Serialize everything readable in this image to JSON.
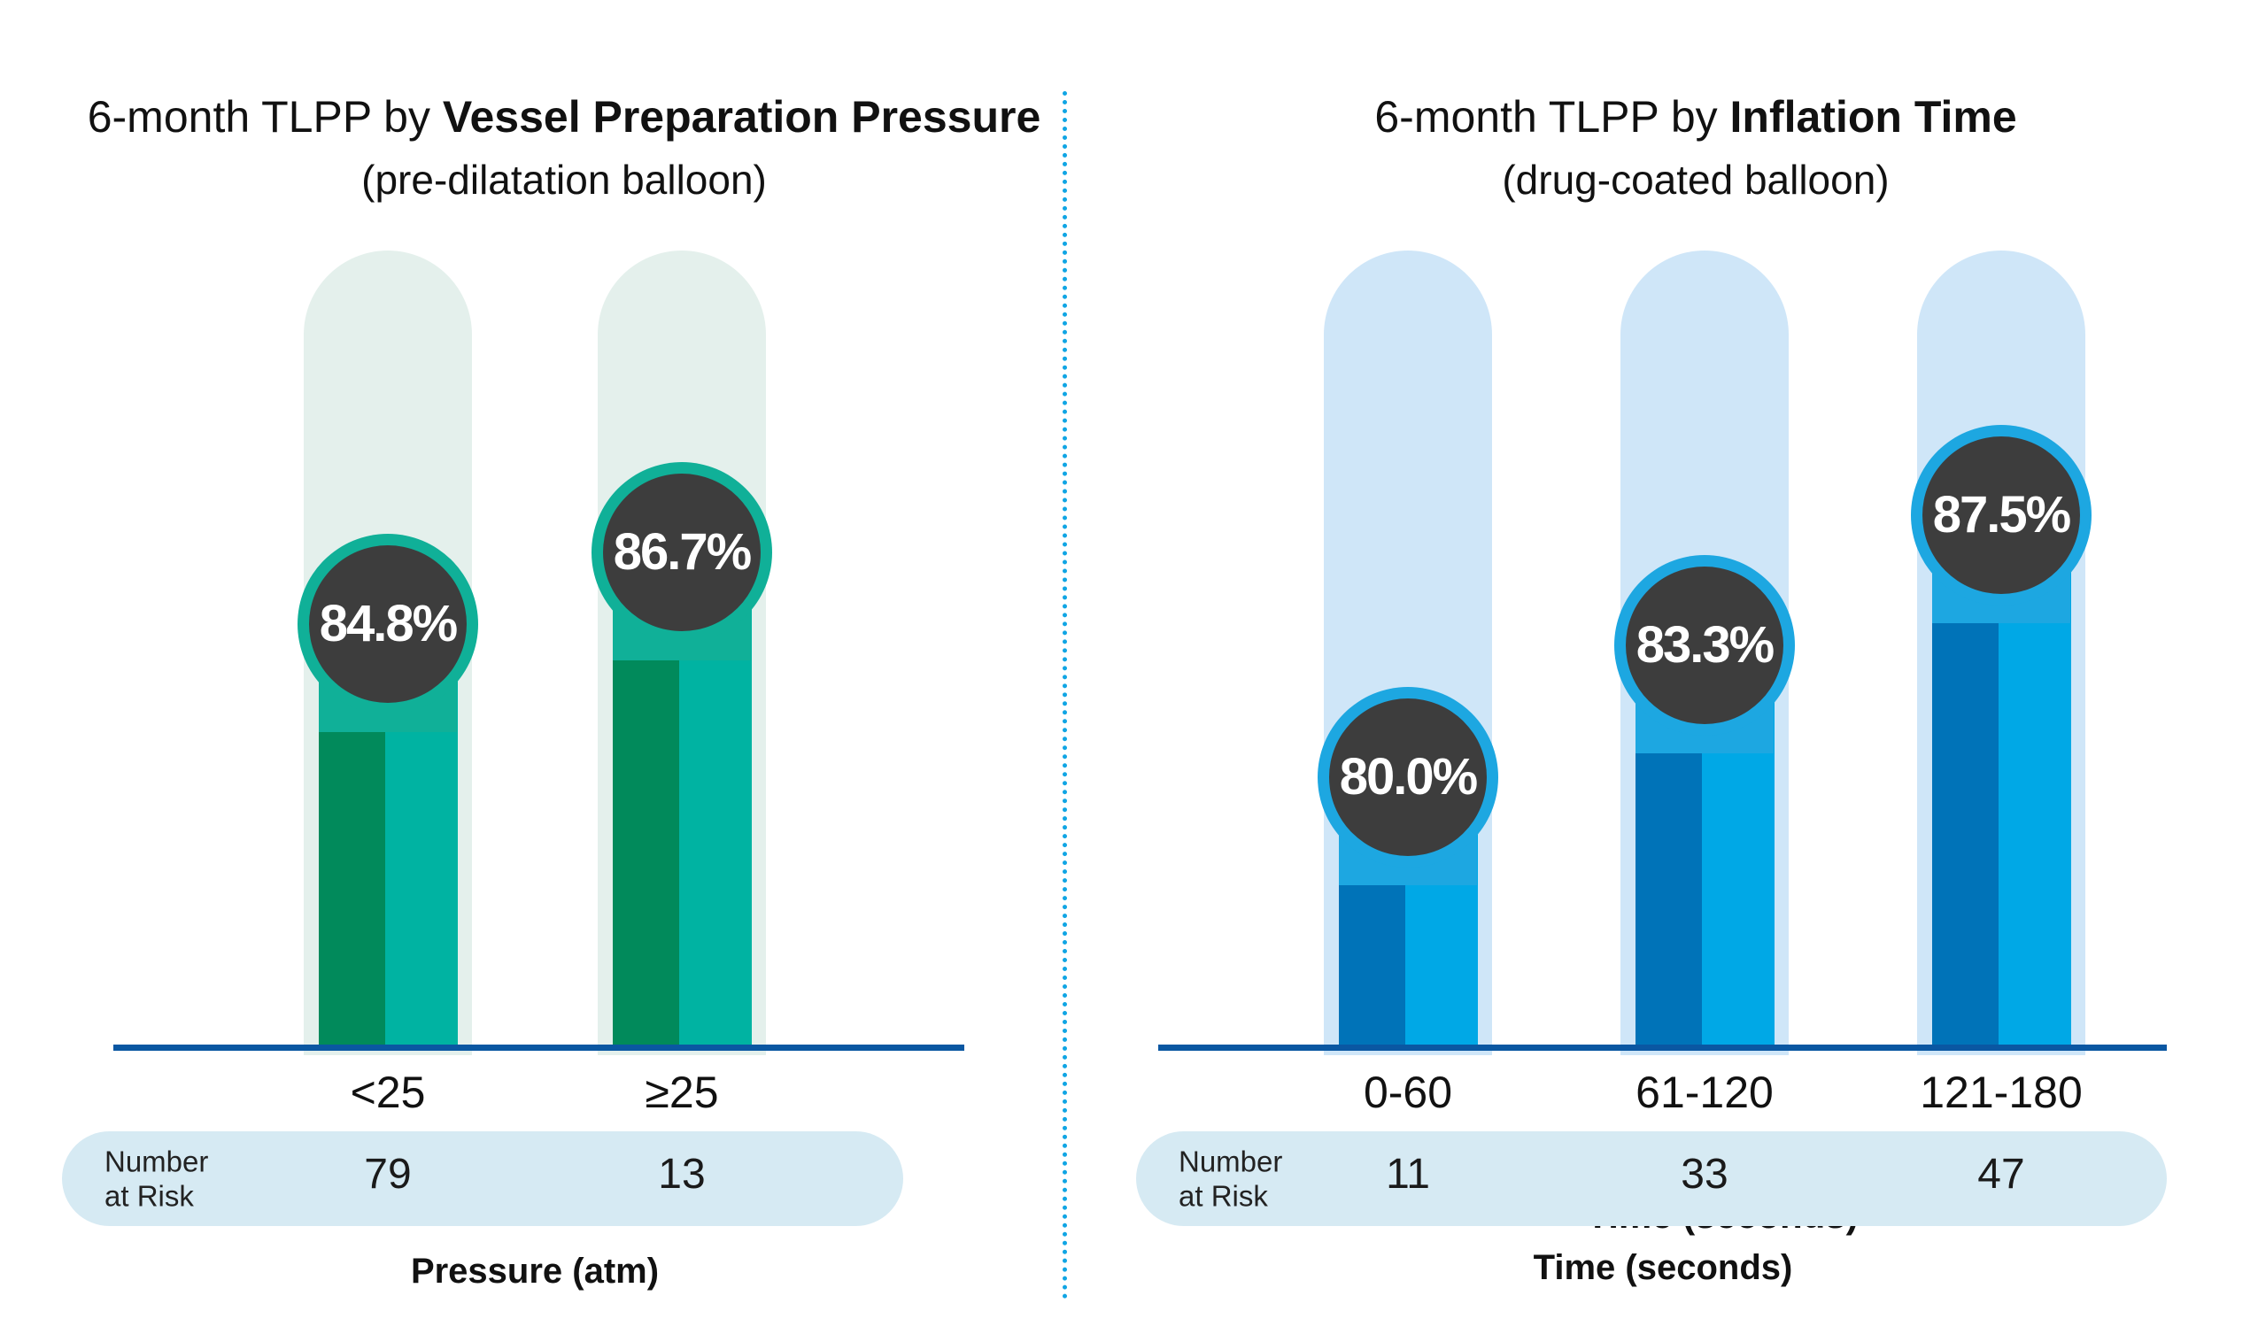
{
  "canvas": {
    "background": "#ffffff"
  },
  "divider": {
    "color": "#10a5e4"
  },
  "shared": {
    "baseline_color": "#0a57a2",
    "badge_bg": "#3d3d3d",
    "badge_text_color": "#ffffff",
    "nar_pill_color": "#d6eaf3",
    "text_color": "#111111"
  },
  "charts": [
    {
      "title_prefix": "6-month TLPP by ",
      "title_bold": "Vessel Preparation Pressure",
      "subtitle": "(pre-dilatation balloon)",
      "xlabel": "Pressure (atm)",
      "nar_label_line1": "Number",
      "nar_label_line2": "at Risk",
      "categories": [
        "<25",
        "≥25"
      ],
      "value_labels": [
        "84.8%",
        "86.7%"
      ],
      "number_at_risk": [
        "79",
        "13"
      ],
      "colors": {
        "pill_bg": "#e4f0ec",
        "bar_dark": "#018a5b",
        "bar_light": "#00b3a2",
        "ring": "#10b098"
      }
    },
    {
      "title_prefix": "6-month TLPP by ",
      "title_bold": "Inflation Time",
      "subtitle": "(drug-coated balloon)",
      "xlabel": "Time (seconds)",
      "nar_label_line1": "Number",
      "nar_label_line2": "at Risk",
      "categories": [
        "0-60",
        "61-120",
        "121-180"
      ],
      "value_labels": [
        "80.0%",
        "83.3%",
        "87.5%"
      ],
      "number_at_risk": [
        "11",
        "33",
        "47"
      ],
      "colors": {
        "pill_bg": "#cfe6f8",
        "bar_dark": "#0073b8",
        "bar_light": "#00a8e6",
        "ring": "#1da7e1"
      }
    }
  ],
  "chart_data": [
    {
      "type": "bar",
      "title": "6-month TLPP by Vessel Preparation Pressure",
      "subtitle": "(pre-dilatation balloon)",
      "categories": [
        "<25",
        "≥25"
      ],
      "values": [
        84.8,
        86.7
      ],
      "value_labels": [
        "84.8%",
        "86.7%"
      ],
      "xlabel": "Pressure (atm)",
      "number_at_risk": [
        79,
        13
      ],
      "ylim": [
        0,
        100
      ],
      "grid": false,
      "legend": false
    },
    {
      "type": "bar",
      "title": "6-month TLPP by Inflation Time",
      "subtitle": "(drug-coated balloon)",
      "categories": [
        "0-60",
        "61-120",
        "121-180"
      ],
      "values": [
        80.0,
        83.3,
        87.5
      ],
      "value_labels": [
        "80.0%",
        "83.3%",
        "87.5%"
      ],
      "xlabel": "Time (seconds)",
      "number_at_risk": [
        11,
        33,
        47
      ],
      "ylim": [
        0,
        100
      ],
      "grid": false,
      "legend": false
    }
  ]
}
